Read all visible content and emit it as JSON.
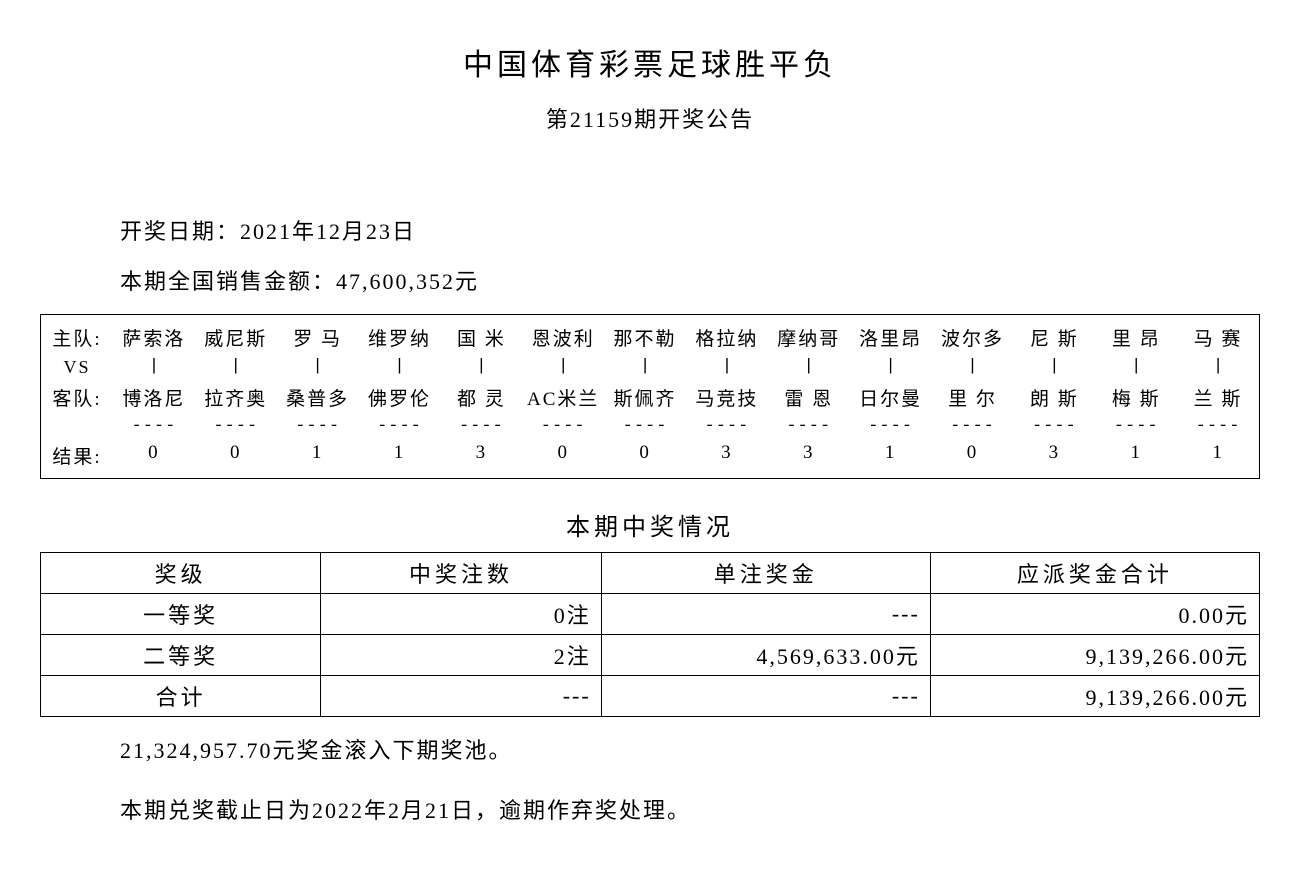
{
  "header": {
    "title": "中国体育彩票足球胜平负",
    "subtitle": "第21159期开奖公告"
  },
  "meta": {
    "draw_date": "开奖日期：2021年12月23日",
    "sales": "本期全国销售金额：47,600,352元"
  },
  "match": {
    "labels": {
      "home": "主队:",
      "vs": "VS",
      "away": "客队:",
      "result": "结果:"
    },
    "vs_glyph": "|",
    "dash_glyph": "----",
    "home_teams": [
      "萨索洛",
      "威尼斯",
      "罗 马",
      "维罗纳",
      "国 米",
      "恩波利",
      "那不勒",
      "格拉纳",
      "摩纳哥",
      "洛里昂",
      "波尔多",
      "尼 斯",
      "里 昂",
      "马 赛"
    ],
    "away_teams": [
      "博洛尼",
      "拉齐奥",
      "桑普多",
      "佛罗伦",
      "都 灵",
      "AC米兰",
      "斯佩齐",
      "马竞技",
      "雷 恩",
      "日尔曼",
      "里 尔",
      "朗 斯",
      "梅 斯",
      "兰 斯"
    ],
    "results": [
      "0",
      "0",
      "1",
      "1",
      "3",
      "0",
      "0",
      "3",
      "3",
      "1",
      "0",
      "3",
      "1",
      "1"
    ]
  },
  "prize": {
    "section_title": "本期中奖情况",
    "headers": {
      "level": "奖级",
      "count": "中奖注数",
      "unit": "单注奖金",
      "total": "应派奖金合计"
    },
    "rows": [
      {
        "level": "一等奖",
        "count": "0注",
        "unit": "---",
        "total": "0.00元"
      },
      {
        "level": "二等奖",
        "count": "2注",
        "unit": "4,569,633.00元",
        "total": "9,139,266.00元"
      },
      {
        "level": "合计",
        "count": "---",
        "unit": "---",
        "total": "9,139,266.00元"
      }
    ]
  },
  "footer": {
    "rollover": "21,324,957.70元奖金滚入下期奖池。",
    "deadline": "本期兑奖截止日为2022年2月21日，逾期作弃奖处理。"
  },
  "style": {
    "background_color": "#ffffff",
    "text_color": "#000000",
    "border_color": "#000000",
    "title_fontsize": 30,
    "body_fontsize": 22,
    "match_fontsize": 19
  }
}
